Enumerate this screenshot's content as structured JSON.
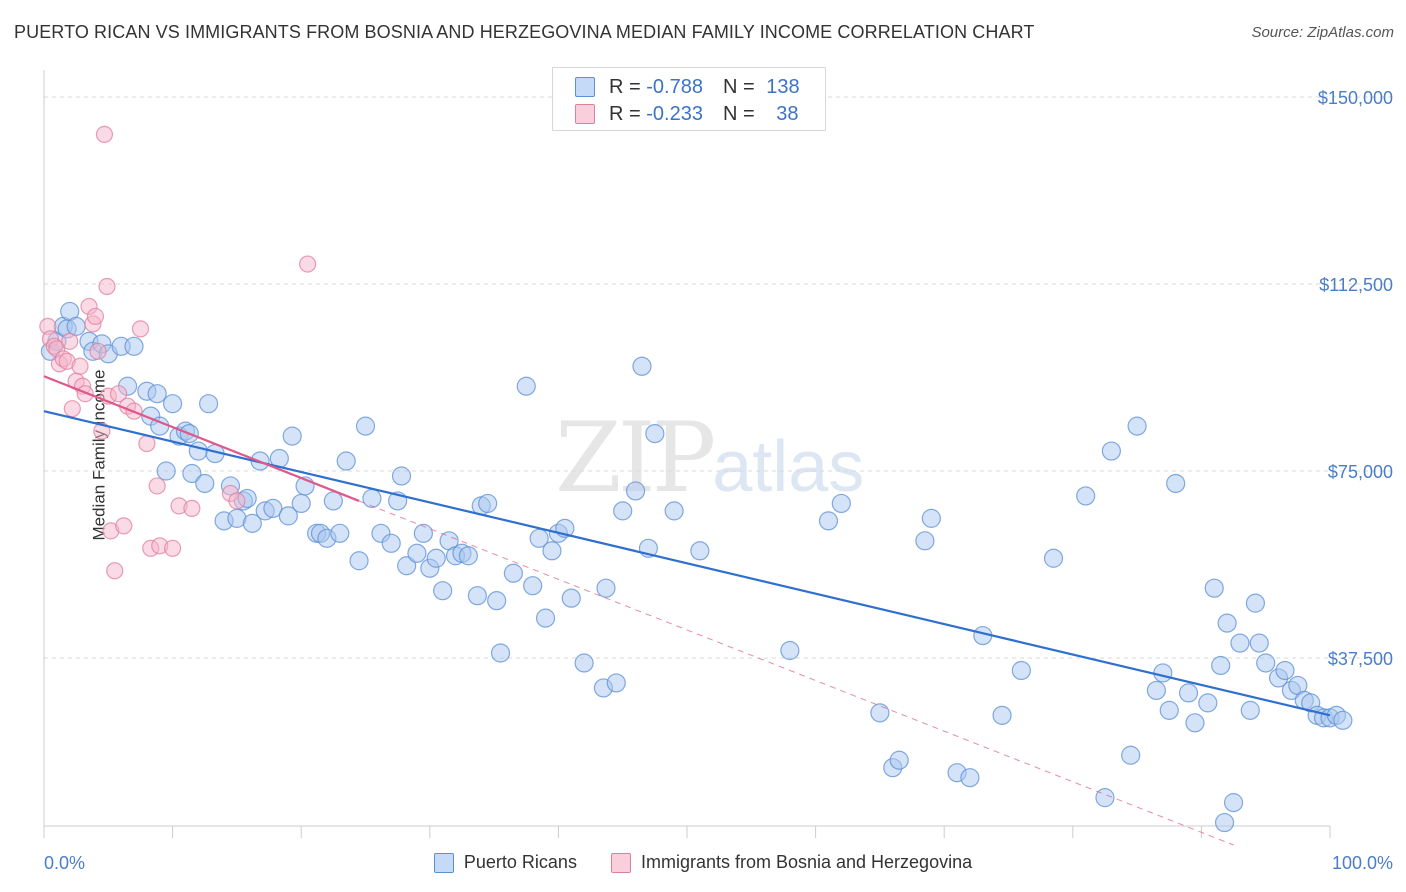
{
  "title": "PUERTO RICAN VS IMMIGRANTS FROM BOSNIA AND HERZEGOVINA MEDIAN FAMILY INCOME CORRELATION CHART",
  "source": "Source: ZipAtlas.com",
  "watermark": {
    "zip": "ZIP",
    "atlas": "atlas"
  },
  "legend": {
    "rows": [
      {
        "r_label": "R = ",
        "r_value": "-0.788",
        "n_label": "N = ",
        "n_value": "138",
        "color": "#a9c8f0"
      },
      {
        "r_label": "R = ",
        "r_value": "-0.233",
        "n_label": "N = ",
        "n_value": "38",
        "color": "#f5b6ca"
      }
    ]
  },
  "bottom_legend": {
    "items": [
      {
        "label": "Puerto Ricans",
        "color": "#a9c8f0"
      },
      {
        "label": "Immigrants from Bosnia and Herzegovina",
        "color": "#f5b6ca"
      }
    ]
  },
  "chart_data": {
    "type": "scatter",
    "title": "PUERTO RICAN VS IMMIGRANTS FROM BOSNIA AND HERZEGOVINA MEDIAN FAMILY INCOME CORRELATION CHART",
    "xlabel": "",
    "ylabel": "Median Family Income",
    "xlim": [
      0,
      100
    ],
    "ylim": [
      0,
      155000
    ],
    "x_tick_labels": [
      "0.0%",
      "100.0%"
    ],
    "y_ticks": [
      37500,
      75000,
      112500,
      150000
    ],
    "y_tick_labels": [
      "$37,500",
      "$75,000",
      "$112,500",
      "$150,000"
    ],
    "grid": true,
    "colors": {
      "blue_fill": "#a9c8f0",
      "blue_stroke": "#5b8fd6",
      "blue_line": "#2f6fd0",
      "pink_fill": "#f5b6ca",
      "pink_stroke": "#e07ea0",
      "pink_line": "#e0588a"
    },
    "series": [
      {
        "name": "Puerto Ricans",
        "points": [
          [
            0.5,
            99000
          ],
          [
            1.0,
            101000
          ],
          [
            1.5,
            104000
          ],
          [
            1.8,
            103500
          ],
          [
            2.0,
            107000
          ],
          [
            2.5,
            104000
          ],
          [
            3.5,
            101000
          ],
          [
            3.8,
            99000
          ],
          [
            4.5,
            100500
          ],
          [
            5.0,
            98500
          ],
          [
            6.0,
            100000
          ],
          [
            6.5,
            92000
          ],
          [
            7.0,
            100000
          ],
          [
            8.0,
            91000
          ],
          [
            8.3,
            86000
          ],
          [
            8.8,
            90500
          ],
          [
            9.0,
            84000
          ],
          [
            9.5,
            75000
          ],
          [
            10.0,
            88500
          ],
          [
            10.5,
            82000
          ],
          [
            11.0,
            83000
          ],
          [
            11.3,
            82500
          ],
          [
            11.5,
            74500
          ],
          [
            12.0,
            79000
          ],
          [
            12.5,
            72500
          ],
          [
            12.8,
            88500
          ],
          [
            13.3,
            78500
          ],
          [
            14.0,
            65000
          ],
          [
            14.5,
            72000
          ],
          [
            15.0,
            65500
          ],
          [
            15.5,
            69000
          ],
          [
            15.8,
            69500
          ],
          [
            16.2,
            64500
          ],
          [
            16.8,
            77000
          ],
          [
            17.2,
            67000
          ],
          [
            17.8,
            67500
          ],
          [
            18.3,
            77500
          ],
          [
            19.0,
            66000
          ],
          [
            19.3,
            82000
          ],
          [
            20.0,
            68500
          ],
          [
            20.3,
            72000
          ],
          [
            21.2,
            62500
          ],
          [
            21.5,
            62500
          ],
          [
            22.0,
            61500
          ],
          [
            22.5,
            69000
          ],
          [
            23.0,
            62500
          ],
          [
            23.5,
            77000
          ],
          [
            24.5,
            57000
          ],
          [
            25.0,
            84000
          ],
          [
            25.5,
            69500
          ],
          [
            26.2,
            62500
          ],
          [
            27.0,
            60500
          ],
          [
            27.5,
            69000
          ],
          [
            27.8,
            74000
          ],
          [
            28.2,
            56000
          ],
          [
            29.0,
            58500
          ],
          [
            29.5,
            62500
          ],
          [
            30.0,
            55500
          ],
          [
            30.5,
            57500
          ],
          [
            31.0,
            51000
          ],
          [
            31.5,
            61000
          ],
          [
            32.0,
            58000
          ],
          [
            32.5,
            58500
          ],
          [
            33.0,
            58000
          ],
          [
            33.7,
            50000
          ],
          [
            34.0,
            68000
          ],
          [
            34.5,
            68500
          ],
          [
            35.2,
            49000
          ],
          [
            35.5,
            38500
          ],
          [
            36.5,
            54500
          ],
          [
            37.5,
            92000
          ],
          [
            38.0,
            52000
          ],
          [
            38.5,
            61500
          ],
          [
            39.0,
            45500
          ],
          [
            39.5,
            59000
          ],
          [
            40.0,
            62500
          ],
          [
            40.5,
            63500
          ],
          [
            41.0,
            49500
          ],
          [
            42.0,
            36500
          ],
          [
            43.5,
            31500
          ],
          [
            43.7,
            51500
          ],
          [
            44.5,
            32500
          ],
          [
            45.0,
            67000
          ],
          [
            46.0,
            71000
          ],
          [
            46.5,
            96000
          ],
          [
            47.0,
            59500
          ],
          [
            47.5,
            82500
          ],
          [
            49.0,
            67000
          ],
          [
            51.0,
            59000
          ],
          [
            58.0,
            39000
          ],
          [
            61.0,
            65000
          ],
          [
            62.0,
            68500
          ],
          [
            65.0,
            26500
          ],
          [
            66.0,
            15500
          ],
          [
            66.5,
            17000
          ],
          [
            68.5,
            61000
          ],
          [
            69.0,
            65500
          ],
          [
            71.0,
            14500
          ],
          [
            72.0,
            13500
          ],
          [
            73.0,
            42000
          ],
          [
            74.5,
            26000
          ],
          [
            76.0,
            35000
          ],
          [
            78.5,
            57500
          ],
          [
            81.0,
            70000
          ],
          [
            82.5,
            9500
          ],
          [
            83.0,
            79000
          ],
          [
            84.5,
            18000
          ],
          [
            85.0,
            84000
          ],
          [
            86.5,
            31000
          ],
          [
            87.0,
            34500
          ],
          [
            87.5,
            27000
          ],
          [
            88.0,
            72500
          ],
          [
            89.0,
            30500
          ],
          [
            89.5,
            24500
          ],
          [
            90.5,
            28500
          ],
          [
            91.0,
            51500
          ],
          [
            91.5,
            36000
          ],
          [
            92.0,
            44500
          ],
          [
            92.5,
            8500
          ],
          [
            93.0,
            40500
          ],
          [
            93.8,
            27000
          ],
          [
            94.2,
            48500
          ],
          [
            94.5,
            40500
          ],
          [
            95.0,
            36500
          ],
          [
            96.0,
            33500
          ],
          [
            96.5,
            35000
          ],
          [
            97.0,
            31000
          ],
          [
            97.5,
            32000
          ],
          [
            98.0,
            29000
          ],
          [
            98.5,
            28500
          ],
          [
            99.0,
            26000
          ],
          [
            99.5,
            25500
          ],
          [
            100.0,
            25500
          ],
          [
            100.5,
            26000
          ],
          [
            101.0,
            25000
          ],
          [
            91.8,
            4500
          ]
        ]
      },
      {
        "name": "Immigrants from Bosnia and Herzegovina",
        "points": [
          [
            0.3,
            104000
          ],
          [
            0.5,
            101500
          ],
          [
            0.8,
            100000
          ],
          [
            1.0,
            99500
          ],
          [
            1.2,
            96500
          ],
          [
            1.5,
            97500
          ],
          [
            1.8,
            97000
          ],
          [
            2.0,
            101000
          ],
          [
            2.2,
            87500
          ],
          [
            2.5,
            93000
          ],
          [
            2.8,
            96000
          ],
          [
            3.0,
            92000
          ],
          [
            3.2,
            90500
          ],
          [
            3.5,
            108000
          ],
          [
            3.8,
            104500
          ],
          [
            4.0,
            106000
          ],
          [
            4.2,
            99000
          ],
          [
            4.5,
            83000
          ],
          [
            4.7,
            142500
          ],
          [
            4.9,
            112000
          ],
          [
            5.0,
            90000
          ],
          [
            5.2,
            63000
          ],
          [
            5.5,
            55000
          ],
          [
            5.8,
            90500
          ],
          [
            6.2,
            64000
          ],
          [
            6.5,
            88000
          ],
          [
            7.0,
            87000
          ],
          [
            7.5,
            103500
          ],
          [
            8.0,
            80500
          ],
          [
            8.3,
            59500
          ],
          [
            8.8,
            72000
          ],
          [
            9.0,
            60000
          ],
          [
            10.0,
            59500
          ],
          [
            10.5,
            68000
          ],
          [
            11.5,
            67500
          ],
          [
            14.5,
            70500
          ],
          [
            15.0,
            69000
          ],
          [
            20.5,
            116500
          ]
        ]
      }
    ],
    "trendlines": [
      {
        "series": "Puerto Ricans",
        "x": [
          0,
          100
        ],
        "y": [
          87000,
          26000
        ]
      },
      {
        "series": "Immigrants from Bosnia and Herzegovina",
        "x": [
          0,
          24.5
        ],
        "y": [
          94000,
          69000
        ]
      },
      {
        "series": "Immigrants from Bosnia and Herzegovina",
        "style": "dashed",
        "x": [
          24.5,
          92.5
        ],
        "y": [
          69000,
          0
        ]
      }
    ]
  }
}
